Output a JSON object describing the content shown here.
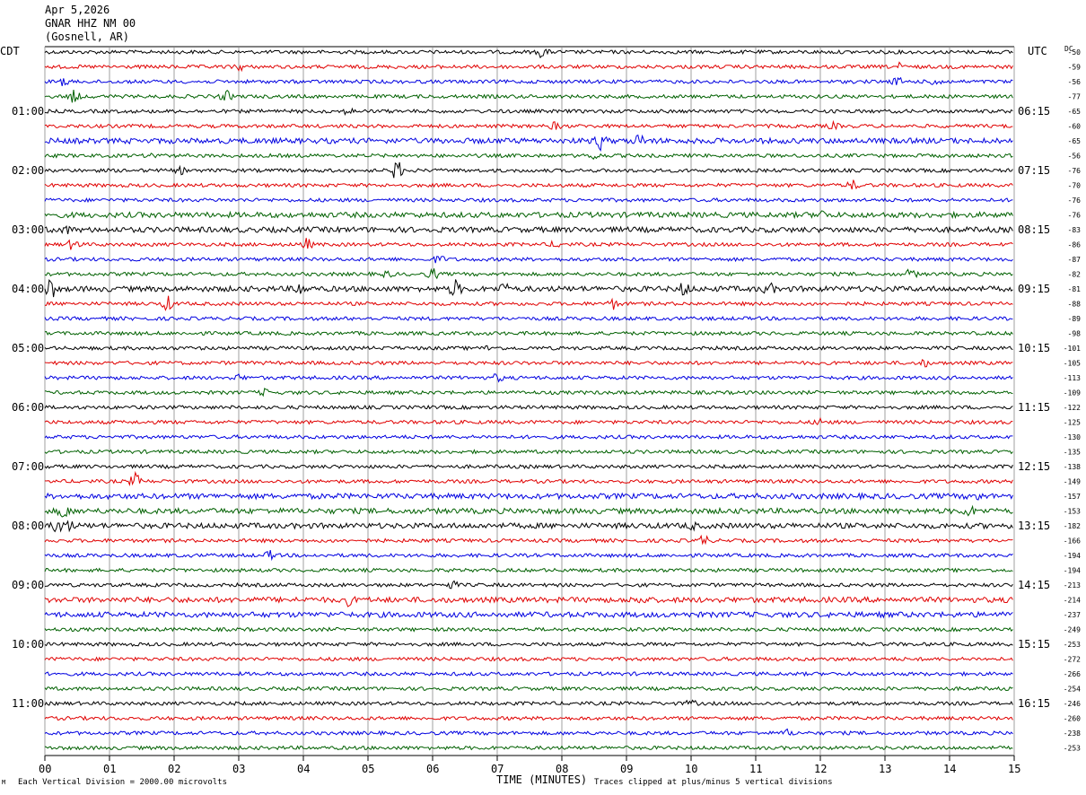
{
  "header": {
    "date": "Apr 5,2026",
    "station": "GNAR HHZ NM 00",
    "location": "(Gosnell, AR)"
  },
  "labels": {
    "left_tz": "CDT",
    "right_tz": "UTC",
    "dc_label": "DC",
    "xlabel": "TIME (MINUTES)"
  },
  "footer": {
    "scale_note": "Each Vertical Division = 2000.00 microvolts",
    "clip_note": "Traces clipped at plus/minus 5 vertical divisions",
    "corner_mark": "M"
  },
  "colors": {
    "trace_cycle": [
      "#000000",
      "#e00000",
      "#0000e0",
      "#006000"
    ],
    "grid": "#888888"
  },
  "chart_data": {
    "type": "line",
    "title": "",
    "xlabel": "TIME (MINUTES)",
    "xlim": [
      0,
      15
    ],
    "x_ticks": [
      "00",
      "01",
      "02",
      "03",
      "04",
      "05",
      "06",
      "07",
      "08",
      "09",
      "10",
      "11",
      "12",
      "13",
      "14",
      "15"
    ],
    "left_hour_labels": [
      {
        "row": 4,
        "label": "01:00"
      },
      {
        "row": 8,
        "label": "02:00"
      },
      {
        "row": 12,
        "label": "03:00"
      },
      {
        "row": 16,
        "label": "04:00"
      },
      {
        "row": 20,
        "label": "05:00"
      },
      {
        "row": 24,
        "label": "06:00"
      },
      {
        "row": 28,
        "label": "07:00"
      },
      {
        "row": 32,
        "label": "08:00"
      },
      {
        "row": 36,
        "label": "09:00"
      },
      {
        "row": 40,
        "label": "10:00"
      },
      {
        "row": 44,
        "label": "11:00"
      }
    ],
    "right_hour_labels": [
      {
        "row": 4,
        "label": "06:15"
      },
      {
        "row": 8,
        "label": "07:15"
      },
      {
        "row": 12,
        "label": "08:15"
      },
      {
        "row": 16,
        "label": "09:15"
      },
      {
        "row": 20,
        "label": "10:15"
      },
      {
        "row": 24,
        "label": "11:15"
      },
      {
        "row": 28,
        "label": "12:15"
      },
      {
        "row": 32,
        "label": "13:15"
      },
      {
        "row": 36,
        "label": "14:15"
      },
      {
        "row": 40,
        "label": "15:15"
      },
      {
        "row": 44,
        "label": "16:15"
      }
    ],
    "dc_offsets": [
      "-50",
      "-59",
      "-56",
      "-77",
      "-65",
      "-60",
      "-65",
      "-56",
      "-76",
      "-70",
      "-76",
      "-76",
      "-83",
      "-86",
      "-87",
      "-82",
      "-81",
      "-88",
      "-89",
      "-98",
      "-101",
      "-105",
      "-113",
      "-109",
      "-122",
      "-125",
      "-130",
      "-135",
      "-138",
      "-149",
      "-157",
      "-153",
      "-182",
      "-166",
      "-194",
      "-194",
      "-213",
      "-214",
      "-237",
      "-249",
      "-253",
      "-272",
      "-266",
      "-254",
      "-246",
      "-260",
      "-238",
      "-253"
    ],
    "traces": [
      {
        "row": 0,
        "amp": 2,
        "events": [
          [
            7.7,
            6
          ]
        ]
      },
      {
        "row": 1,
        "amp": 2,
        "events": [
          [
            3.0,
            4
          ],
          [
            13.2,
            4
          ]
        ]
      },
      {
        "row": 2,
        "amp": 2,
        "events": [
          [
            0.3,
            4
          ],
          [
            13.2,
            4
          ],
          [
            13.8,
            5
          ]
        ]
      },
      {
        "row": 3,
        "amp": 2,
        "events": [
          [
            0.45,
            7
          ],
          [
            2.8,
            6
          ]
        ]
      },
      {
        "row": 4,
        "amp": 2,
        "events": [
          [
            4.7,
            3
          ]
        ]
      },
      {
        "row": 5,
        "amp": 2,
        "events": [
          [
            7.9,
            4
          ],
          [
            12.2,
            3
          ]
        ]
      },
      {
        "row": 6,
        "amp": 3,
        "events": [
          [
            8.6,
            9
          ],
          [
            9.2,
            6
          ]
        ]
      },
      {
        "row": 7,
        "amp": 2,
        "events": [
          [
            1.7,
            3
          ],
          [
            8.5,
            4
          ]
        ]
      },
      {
        "row": 8,
        "amp": 2,
        "events": [
          [
            5.45,
            11
          ],
          [
            2.1,
            3
          ]
        ]
      },
      {
        "row": 9,
        "amp": 2,
        "events": [
          [
            12.5,
            5
          ]
        ]
      },
      {
        "row": 10,
        "amp": 2,
        "events": []
      },
      {
        "row": 11,
        "amp": 3,
        "events": [
          [
            12.0,
            4
          ]
        ]
      },
      {
        "row": 12,
        "amp": 3,
        "events": [
          [
            0.3,
            4
          ]
        ]
      },
      {
        "row": 13,
        "amp": 2,
        "events": [
          [
            0.45,
            7
          ],
          [
            4.05,
            6
          ],
          [
            7.9,
            3
          ]
        ]
      },
      {
        "row": 14,
        "amp": 2,
        "events": [
          [
            6.1,
            4
          ]
        ]
      },
      {
        "row": 15,
        "amp": 2,
        "events": [
          [
            5.3,
            3
          ],
          [
            6.0,
            6
          ],
          [
            13.4,
            5
          ]
        ]
      },
      {
        "row": 16,
        "amp": 3,
        "events": [
          [
            0.08,
            12
          ],
          [
            6.35,
            9
          ],
          [
            3.95,
            6
          ],
          [
            9.9,
            7
          ],
          [
            11.2,
            6
          ],
          [
            7.1,
            5
          ]
        ]
      },
      {
        "row": 17,
        "amp": 2,
        "events": [
          [
            1.9,
            8
          ],
          [
            8.8,
            5
          ]
        ]
      },
      {
        "row": 18,
        "amp": 2,
        "events": []
      },
      {
        "row": 19,
        "amp": 2,
        "events": []
      },
      {
        "row": 20,
        "amp": 2,
        "events": [
          [
            6.9,
            3
          ]
        ]
      },
      {
        "row": 21,
        "amp": 2,
        "events": [
          [
            13.6,
            4
          ]
        ]
      },
      {
        "row": 22,
        "amp": 2,
        "events": [
          [
            7.0,
            4
          ],
          [
            3.0,
            3
          ]
        ]
      },
      {
        "row": 23,
        "amp": 2,
        "events": [
          [
            3.4,
            3
          ]
        ]
      },
      {
        "row": 24,
        "amp": 2,
        "events": []
      },
      {
        "row": 25,
        "amp": 2,
        "events": [
          [
            12.0,
            4
          ]
        ]
      },
      {
        "row": 26,
        "amp": 2,
        "events": []
      },
      {
        "row": 27,
        "amp": 2,
        "events": []
      },
      {
        "row": 28,
        "amp": 2,
        "events": []
      },
      {
        "row": 29,
        "amp": 2,
        "events": [
          [
            1.4,
            8
          ]
        ]
      },
      {
        "row": 30,
        "amp": 3,
        "events": [
          [
            14.4,
            5
          ]
        ]
      },
      {
        "row": 31,
        "amp": 3,
        "events": [
          [
            0.3,
            8
          ],
          [
            14.3,
            5
          ]
        ]
      },
      {
        "row": 32,
        "amp": 3,
        "events": [
          [
            0.2,
            7
          ],
          [
            0.35,
            6
          ],
          [
            10.0,
            3
          ]
        ]
      },
      {
        "row": 33,
        "amp": 2,
        "events": [
          [
            10.2,
            6
          ]
        ]
      },
      {
        "row": 34,
        "amp": 2,
        "events": [
          [
            3.5,
            5
          ]
        ]
      },
      {
        "row": 35,
        "amp": 2,
        "events": []
      },
      {
        "row": 36,
        "amp": 2,
        "events": [
          [
            6.3,
            4
          ]
        ]
      },
      {
        "row": 37,
        "amp": 3,
        "events": [
          [
            4.7,
            5
          ],
          [
            9.2,
            4
          ]
        ]
      },
      {
        "row": 38,
        "amp": 3,
        "events": []
      },
      {
        "row": 39,
        "amp": 2,
        "events": []
      },
      {
        "row": 40,
        "amp": 2,
        "events": []
      },
      {
        "row": 41,
        "amp": 2,
        "events": []
      },
      {
        "row": 42,
        "amp": 2,
        "events": []
      },
      {
        "row": 43,
        "amp": 2,
        "events": []
      },
      {
        "row": 44,
        "amp": 2,
        "events": [
          [
            10.0,
            3
          ]
        ]
      },
      {
        "row": 45,
        "amp": 2,
        "events": []
      },
      {
        "row": 46,
        "amp": 2,
        "events": [
          [
            11.5,
            3
          ]
        ]
      },
      {
        "row": 47,
        "amp": 2,
        "events": []
      }
    ]
  }
}
